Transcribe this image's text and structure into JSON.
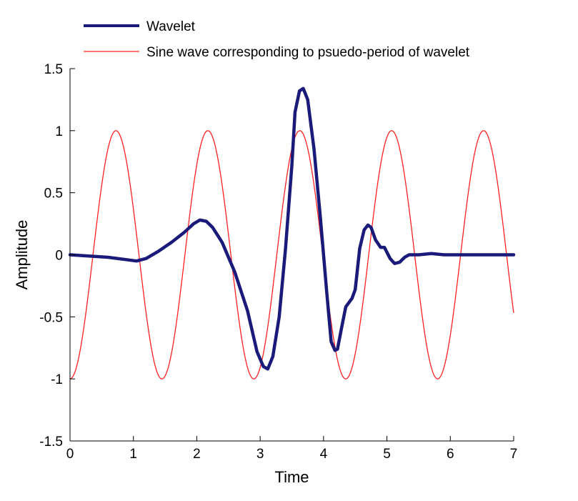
{
  "chart_data": {
    "type": "line",
    "xlabel": "Time",
    "ylabel": "Amplitude",
    "xlim": [
      0,
      7
    ],
    "ylim": [
      -1.5,
      1.5
    ],
    "xticks": [
      0,
      1,
      2,
      3,
      4,
      5,
      6,
      7
    ],
    "yticks": [
      -1.5,
      -1,
      -0.5,
      0,
      0.5,
      1,
      1.5
    ],
    "xtick_labels": [
      "0",
      "1",
      "2",
      "3",
      "4",
      "5",
      "6",
      "7"
    ],
    "ytick_labels": [
      "-1.5",
      "-1",
      "-0.5",
      "0",
      "0.5",
      "1",
      "1.5"
    ],
    "grid": false,
    "legend_position": "top-left",
    "series": [
      {
        "name": "Wavelet",
        "color": "#1a1a7a",
        "style": "thick",
        "x": [
          0,
          0.3,
          0.6,
          0.9,
          1.05,
          1.2,
          1.4,
          1.6,
          1.8,
          1.95,
          2.05,
          2.15,
          2.25,
          2.4,
          2.6,
          2.8,
          2.95,
          3.05,
          3.12,
          3.2,
          3.3,
          3.4,
          3.5,
          3.55,
          3.62,
          3.68,
          3.75,
          3.85,
          3.95,
          4.05,
          4.12,
          4.18,
          4.22,
          4.28,
          4.35,
          4.45,
          4.5,
          4.57,
          4.64,
          4.7,
          4.75,
          4.82,
          4.9,
          4.96,
          5.05,
          5.12,
          5.2,
          5.28,
          5.35,
          5.5,
          5.7,
          5.9,
          6.1,
          6.5,
          7.0
        ],
        "y": [
          0,
          -0.01,
          -0.02,
          -0.04,
          -0.05,
          -0.03,
          0.03,
          0.1,
          0.18,
          0.25,
          0.28,
          0.27,
          0.22,
          0.1,
          -0.14,
          -0.45,
          -0.78,
          -0.9,
          -0.92,
          -0.82,
          -0.5,
          0.05,
          0.72,
          1.15,
          1.32,
          1.34,
          1.25,
          0.85,
          0.3,
          -0.3,
          -0.7,
          -0.77,
          -0.76,
          -0.6,
          -0.42,
          -0.35,
          -0.28,
          0.05,
          0.2,
          0.24,
          0.22,
          0.12,
          0.06,
          0.06,
          -0.03,
          -0.07,
          -0.06,
          -0.02,
          0.0,
          0.0,
          0.01,
          0.0,
          0.0,
          0.0,
          0.0
        ]
      },
      {
        "name": "Sine wave corresponding to psuedo-period of wavelet",
        "color": "#ff2020",
        "style": "thin",
        "function": "-cos(2*pi*t/1.45)",
        "period": 1.45,
        "amplitude": 1
      }
    ]
  }
}
